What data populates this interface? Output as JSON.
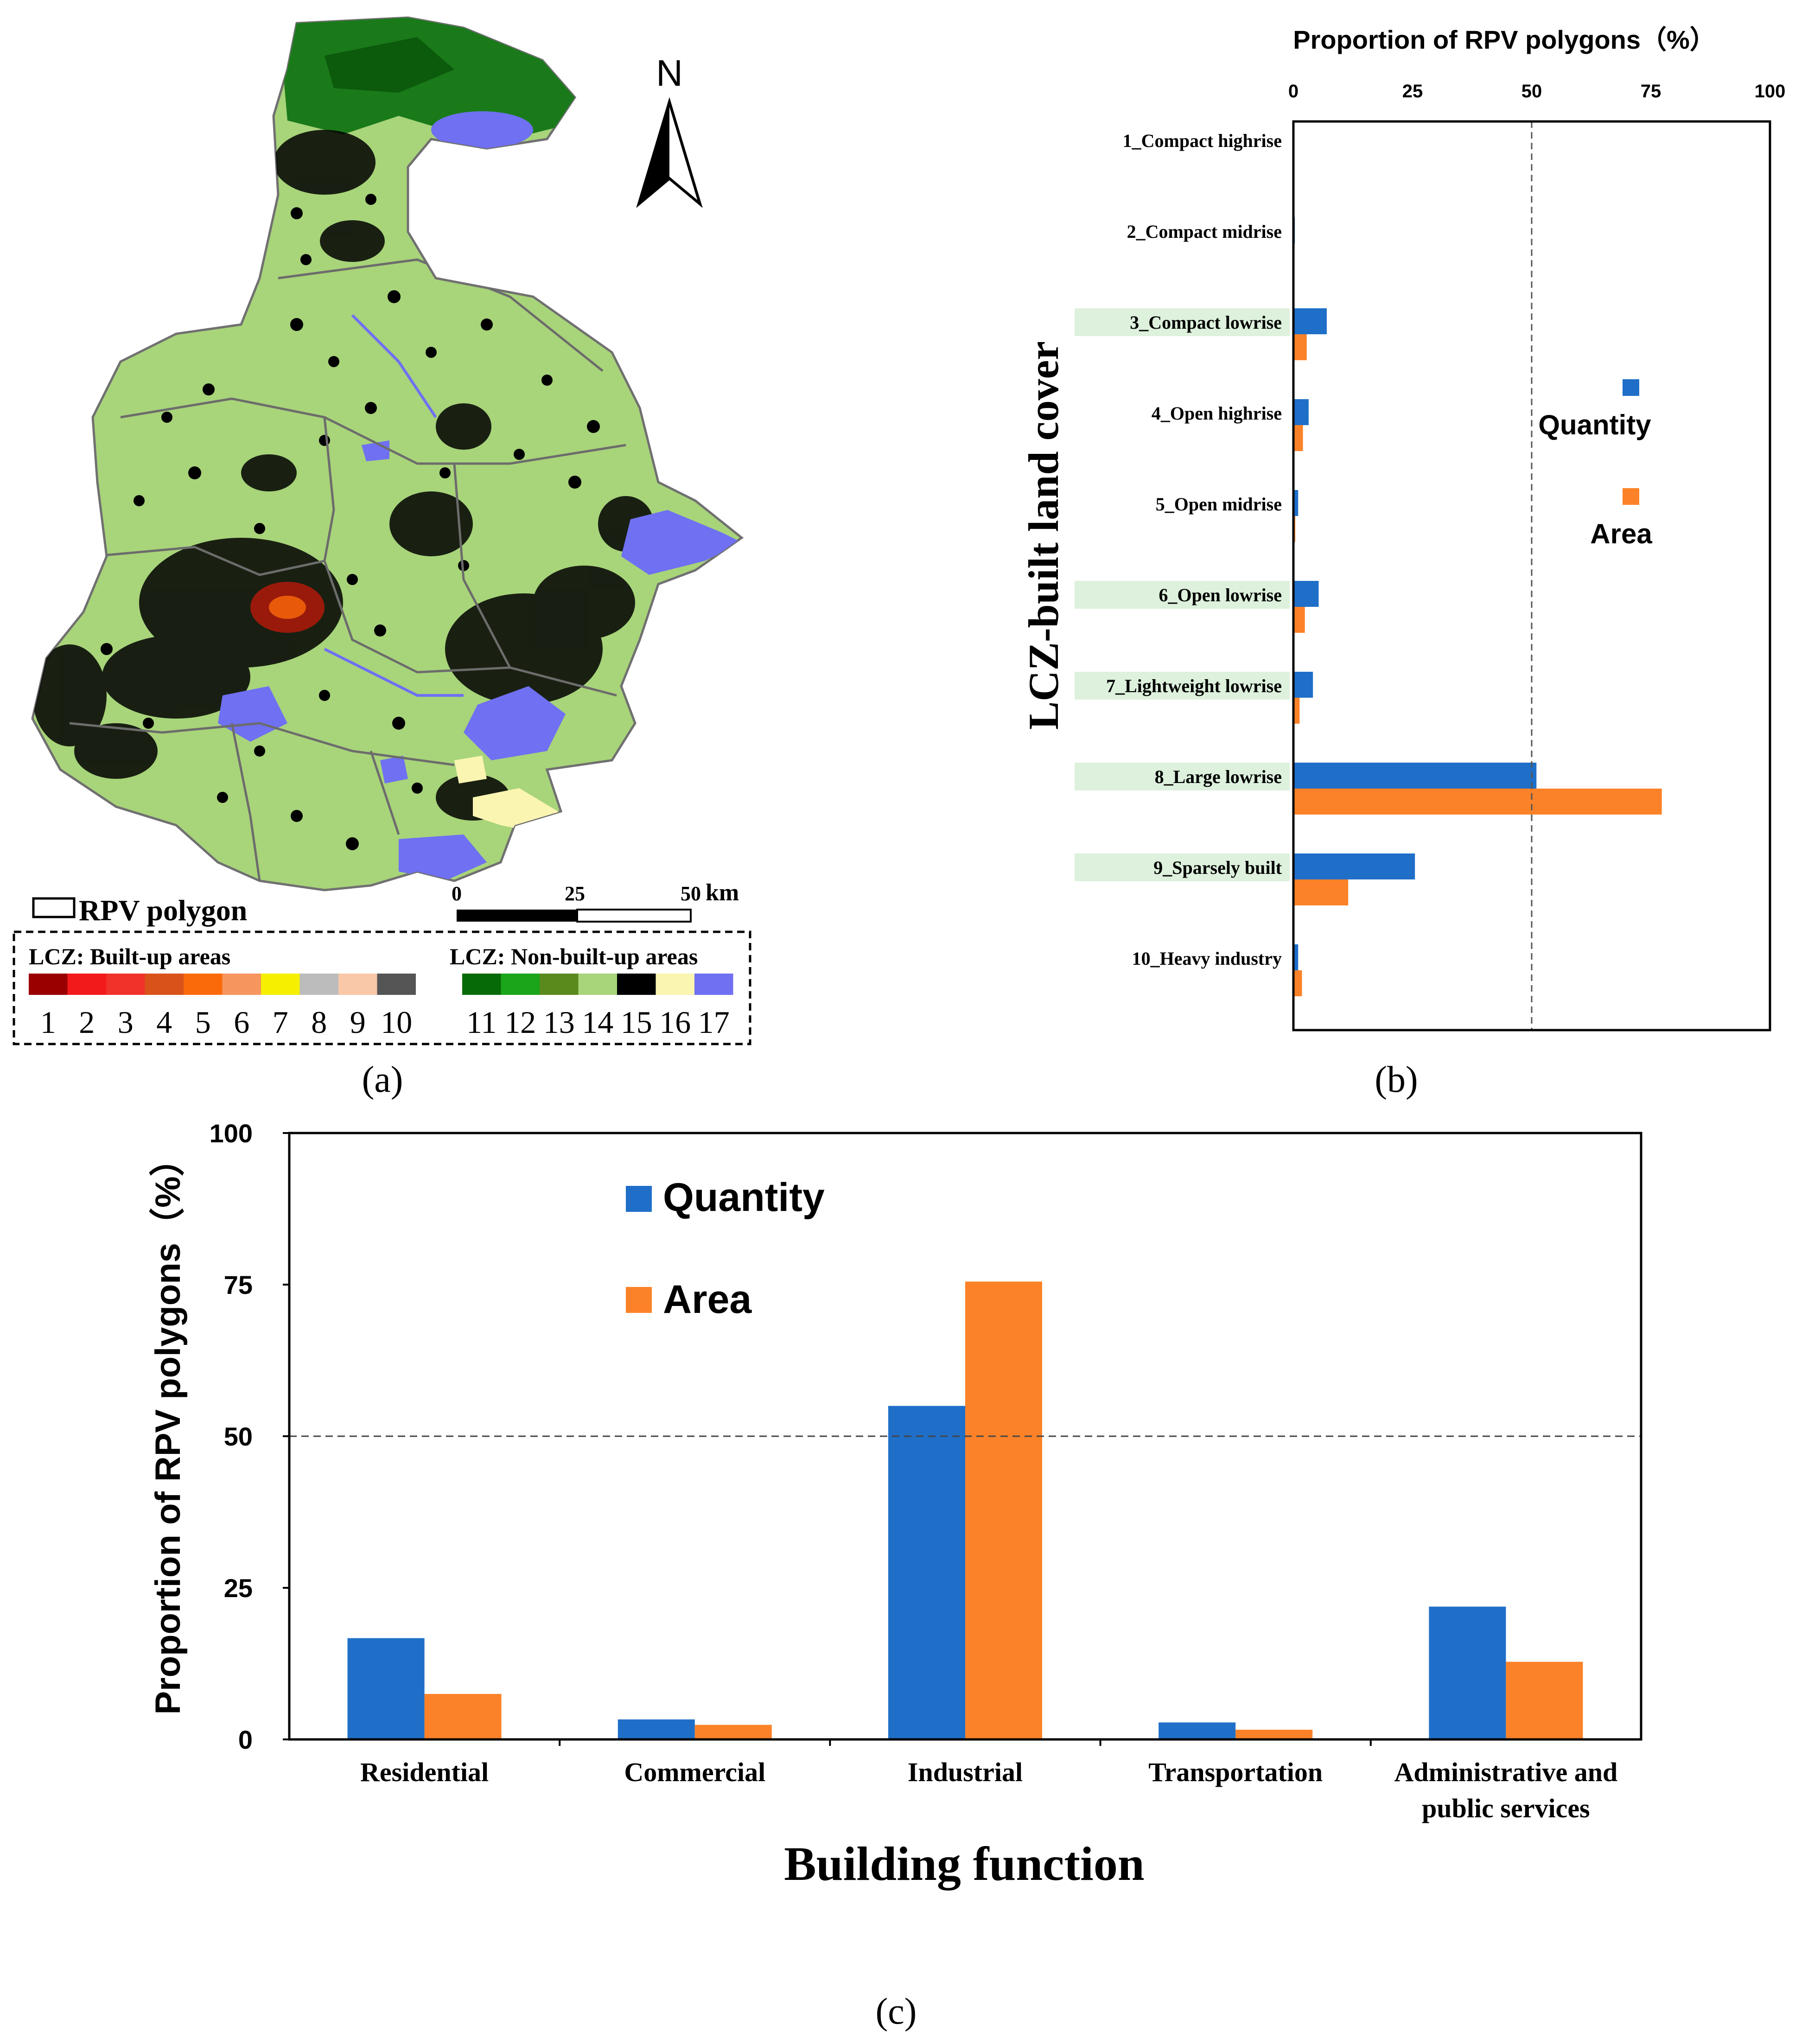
{
  "colors": {
    "quantity": "#1f6fc8",
    "area": "#fb8228",
    "label_highlight": "#ddf1dd",
    "axis": "#000000",
    "ref_line": "#555555"
  },
  "panel_a": {
    "caption": "(a)",
    "north_label": "N",
    "polygon_legend_label": "RPV polygon",
    "scale_ticks": [
      "0",
      "25",
      "50"
    ],
    "scale_unit": "km",
    "legend": {
      "built_title": "LCZ: Built-up areas",
      "nonbuilt_title": "LCZ: Non-built-up areas",
      "built": [
        {
          "num": "1",
          "color": "#9a0000"
        },
        {
          "num": "2",
          "color": "#f21a1a"
        },
        {
          "num": "3",
          "color": "#f0322a"
        },
        {
          "num": "4",
          "color": "#d8521a"
        },
        {
          "num": "5",
          "color": "#fb6a0a"
        },
        {
          "num": "6",
          "color": "#f7955e"
        },
        {
          "num": "7",
          "color": "#f5f000"
        },
        {
          "num": "8",
          "color": "#bcbcbc"
        },
        {
          "num": "9",
          "color": "#f9c8a8"
        },
        {
          "num": "10",
          "color": "#555555"
        }
      ],
      "nonbuilt": [
        {
          "num": "11",
          "color": "#066a06"
        },
        {
          "num": "12",
          "color": "#1aa51a"
        },
        {
          "num": "13",
          "color": "#5a8a1c"
        },
        {
          "num": "14",
          "color": "#a8d47a"
        },
        {
          "num": "15",
          "color": "#000000"
        },
        {
          "num": "16",
          "color": "#fbf5b2"
        },
        {
          "num": "17",
          "color": "#6f70f2"
        }
      ]
    }
  },
  "chart_data": [
    {
      "id": "panel_b",
      "type": "bar",
      "orientation": "horizontal",
      "caption": "(b)",
      "title": "Proportion of RPV polygons（%）",
      "ylabel": "LCZ-built land cover",
      "xlim": [
        0,
        100
      ],
      "xticks": [
        "0",
        "25",
        "50",
        "75",
        "100"
      ],
      "reference_line": 50,
      "categories": [
        "1_Compact highrise",
        "2_Compact midrise",
        "3_Compact lowrise",
        "4_Open highrise",
        "5_Open midrise",
        "6_Open lowrise",
        "7_Lightweight lowrise",
        "8_Large lowrise",
        "9_Sparsely built",
        "10_Heavy industry"
      ],
      "highlighted": [
        false,
        false,
        true,
        false,
        false,
        true,
        true,
        true,
        true,
        false
      ],
      "series": [
        {
          "name": "Quantity",
          "values": [
            0.1,
            0.3,
            7.0,
            3.2,
            1.0,
            5.3,
            4.1,
            51.0,
            25.5,
            1.0
          ]
        },
        {
          "name": "Area",
          "values": [
            0.0,
            0.1,
            2.8,
            2.0,
            0.4,
            2.4,
            1.3,
            77.3,
            11.5,
            1.8
          ]
        }
      ],
      "legend": [
        "Quantity",
        "Area"
      ]
    },
    {
      "id": "panel_c",
      "type": "bar",
      "caption": "(c)",
      "xlabel": "Building function",
      "ylabel": "Proportion of RPV polygons（%）",
      "ylim": [
        0,
        100
      ],
      "yticks": [
        "0",
        "25",
        "50",
        "75",
        "100"
      ],
      "reference_line": 50,
      "categories": [
        "Residential",
        "Commercial",
        "Industrial",
        "Transportation",
        "Administrative and public services"
      ],
      "category_lines": [
        [
          "Residential"
        ],
        [
          "Commercial"
        ],
        [
          "Industrial"
        ],
        [
          "Transportation"
        ],
        [
          "Administrative and",
          "public services"
        ]
      ],
      "series": [
        {
          "name": "Quantity",
          "values": [
            16.7,
            3.3,
            55.0,
            2.8,
            21.9
          ]
        },
        {
          "name": "Area",
          "values": [
            7.5,
            2.4,
            75.5,
            1.6,
            12.8
          ]
        }
      ],
      "legend": [
        "Quantity",
        "Area"
      ]
    }
  ]
}
